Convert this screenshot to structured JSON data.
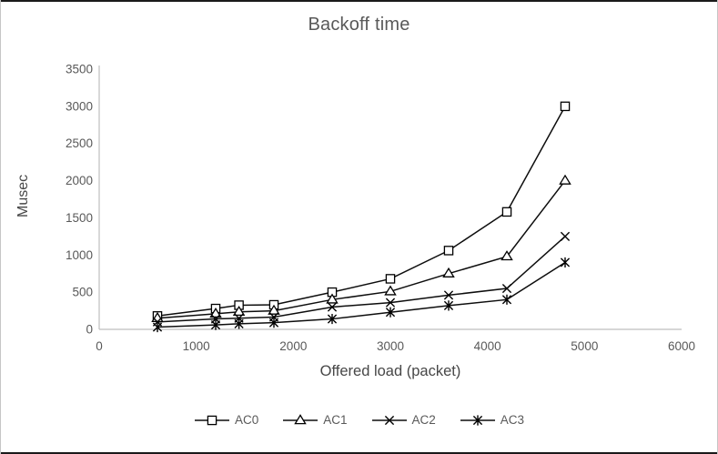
{
  "window": {
    "background": "#ffffff",
    "frame_color": "#c6c6c6",
    "edge_bar_color": "#1a1a1a"
  },
  "chart": {
    "title": "Backoff time",
    "x_axis_title": "Offered load (packet)",
    "y_axis_title": "Musec"
  },
  "chart_data": {
    "type": "line",
    "title": "Backoff time",
    "xlabel": "Offered load (packet)",
    "ylabel": "Musec",
    "xlim": [
      0,
      6000
    ],
    "ylim": [
      0,
      3500
    ],
    "xticks": [
      0,
      1000,
      2000,
      3000,
      4000,
      5000,
      6000
    ],
    "yticks": [
      0,
      500,
      1000,
      1500,
      2000,
      2500,
      3000,
      3500
    ],
    "grid": false,
    "legend_position": "bottom",
    "x": [
      600,
      1200,
      1440,
      1800,
      2400,
      3000,
      3600,
      4200,
      4800
    ],
    "series": [
      {
        "name": "AC0",
        "marker": "square",
        "values": [
          180,
          280,
          325,
          330,
          500,
          680,
          1060,
          1580,
          3000
        ]
      },
      {
        "name": "AC1",
        "marker": "triangle",
        "values": [
          150,
          210,
          235,
          250,
          400,
          510,
          750,
          980,
          2000
        ]
      },
      {
        "name": "AC2",
        "marker": "x",
        "values": [
          100,
          140,
          150,
          165,
          300,
          360,
          460,
          550,
          1250
        ]
      },
      {
        "name": "AC3",
        "marker": "asterisk",
        "values": [
          30,
          60,
          75,
          90,
          140,
          230,
          320,
          400,
          900
        ]
      }
    ],
    "colors": {
      "series_line": "#0d0d0d",
      "marker_stroke": "#000000",
      "axis_line": "#bfbfbf",
      "tick_text": "#595959",
      "title_text": "#595959"
    }
  }
}
